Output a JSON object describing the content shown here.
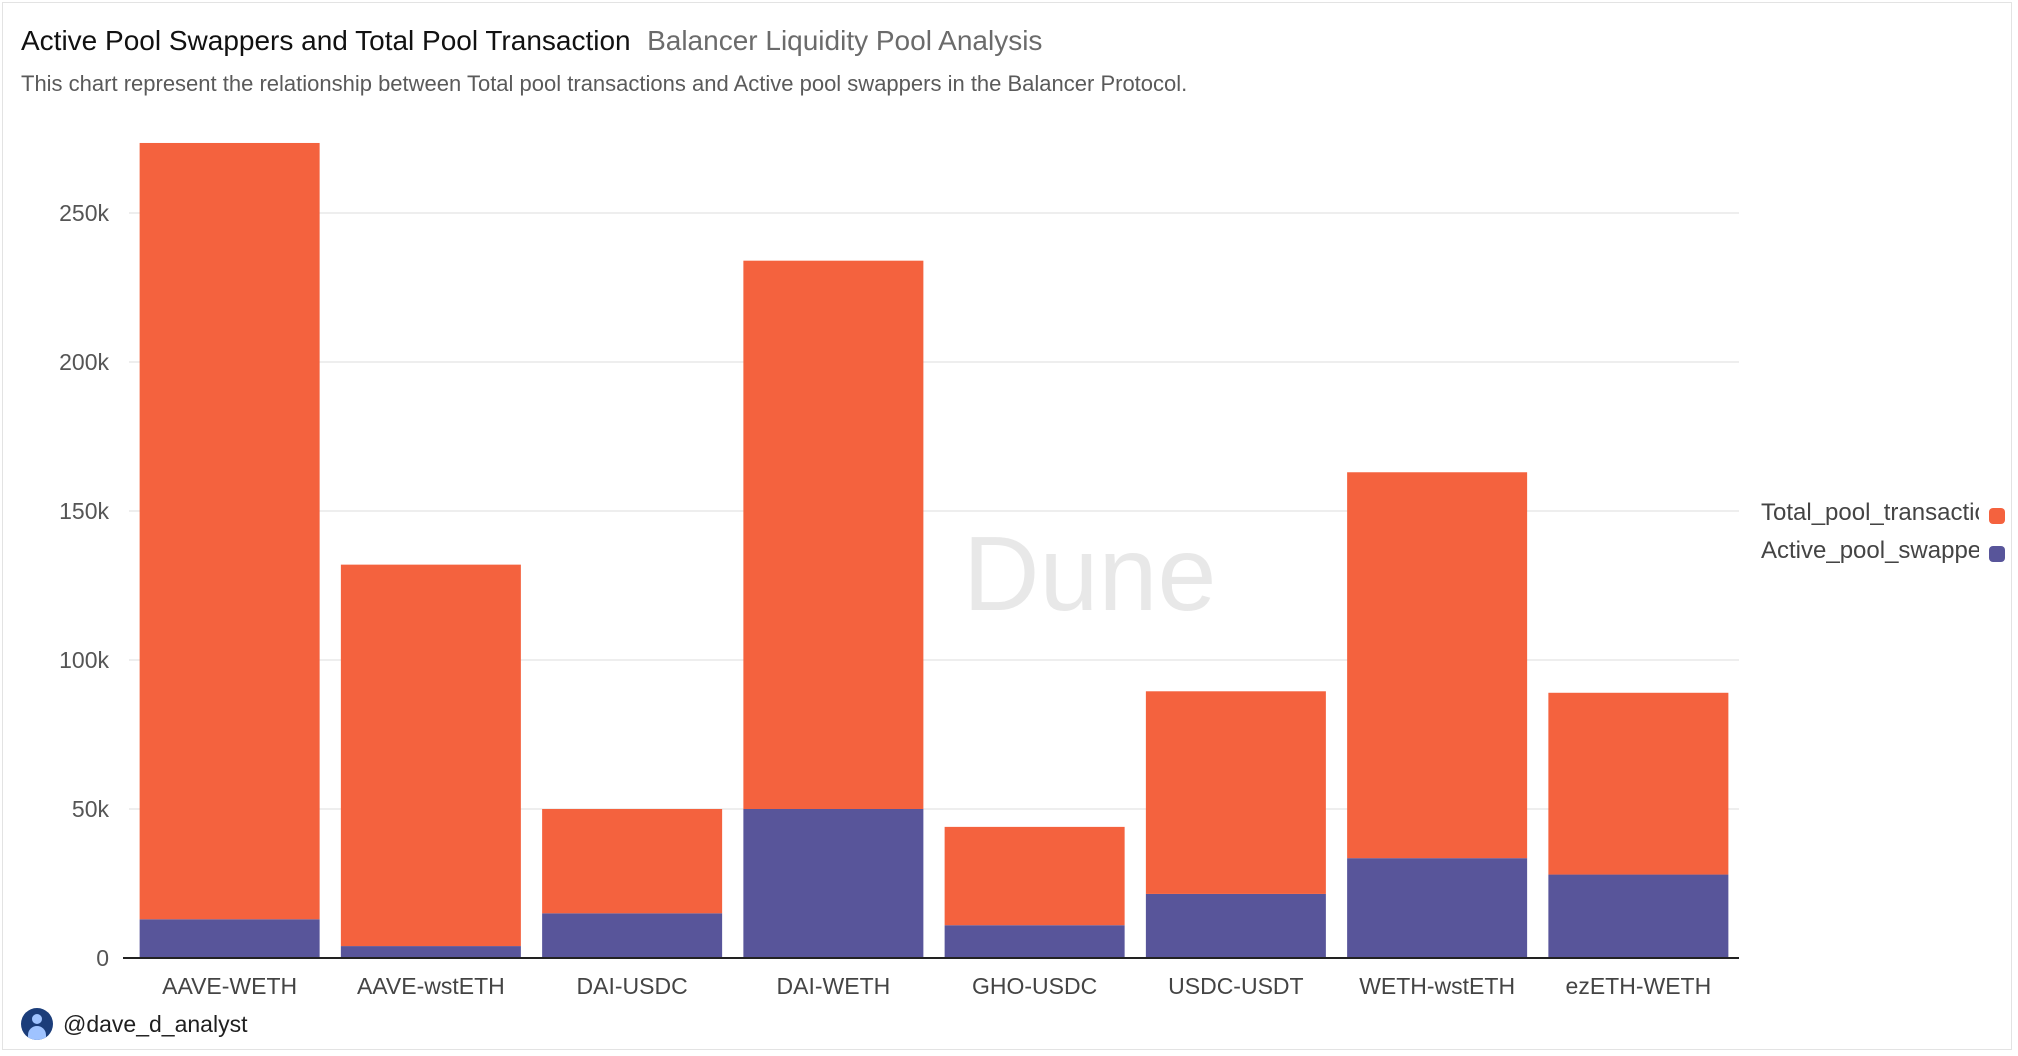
{
  "header": {
    "title": "Active Pool Swappers and Total Pool Transaction",
    "subtitle": "Balancer Liquidity Pool Analysis",
    "description": "This chart represent the relationship between Total pool transactions and Active pool swappers in the Balancer Protocol."
  },
  "watermark": {
    "text": "Dune"
  },
  "author": {
    "handle": "@dave_d_analyst"
  },
  "legend": {
    "items": [
      {
        "label": "Total_pool_transactions",
        "color": "#f4623e"
      },
      {
        "label": "Active_pool_swappers",
        "color": "#58559a"
      }
    ]
  },
  "chart_data": {
    "type": "bar",
    "stacked": true,
    "categories": [
      "AAVE-WETH",
      "AAVE-wstETH",
      "DAI-USDC",
      "DAI-WETH",
      "GHO-USDC",
      "USDC-USDT",
      "WETH-wstETH",
      "ezETH-WETH"
    ],
    "series": [
      {
        "name": "Active_pool_swappers",
        "color": "#58559a",
        "values": [
          13000,
          4000,
          15000,
          50000,
          11000,
          21500,
          33500,
          28000
        ]
      },
      {
        "name": "Total_pool_transactions",
        "color": "#f4623e",
        "values": [
          260500,
          128000,
          35000,
          184000,
          33000,
          68000,
          129500,
          61000
        ]
      }
    ],
    "yticks": [
      "0",
      "50k",
      "100k",
      "150k",
      "200k",
      "250k"
    ],
    "ylim": [
      0,
      275000
    ],
    "grid": true,
    "legend_position": "right"
  }
}
